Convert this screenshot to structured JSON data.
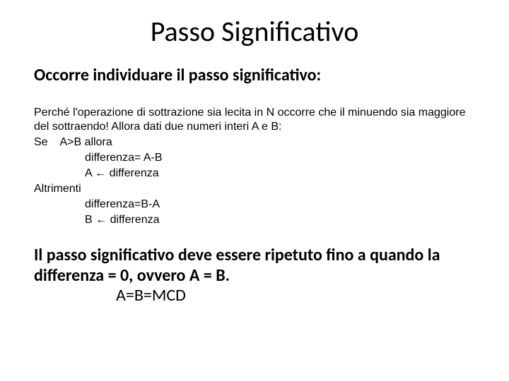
{
  "title": "Passo Significativo",
  "subtitle": "Occorre individuare il passo significativo:",
  "body": {
    "line1": "Perché l'operazione di sottrazione sia lecita in N occorre che il minuendo sia maggiore del sottraendo! Allora dati due numeri interi A e B:",
    "line2": "Se    A>B allora",
    "line3": "differenza= A-B",
    "line4": "A ← differenza",
    "line5": "Altrimenti",
    "line6": "differenza=B-A",
    "line7": "B ← differenza"
  },
  "conclusion": {
    "text": "Il passo significativo deve essere ripetuto fino a quando la differenza = 0, ovvero A = B.",
    "final": "A=B=MCD"
  },
  "colors": {
    "background": "#ffffff",
    "text": "#000000"
  },
  "fonts": {
    "title_size": 40,
    "subtitle_size": 24,
    "body_size": 16,
    "conclusion_size": 24
  }
}
